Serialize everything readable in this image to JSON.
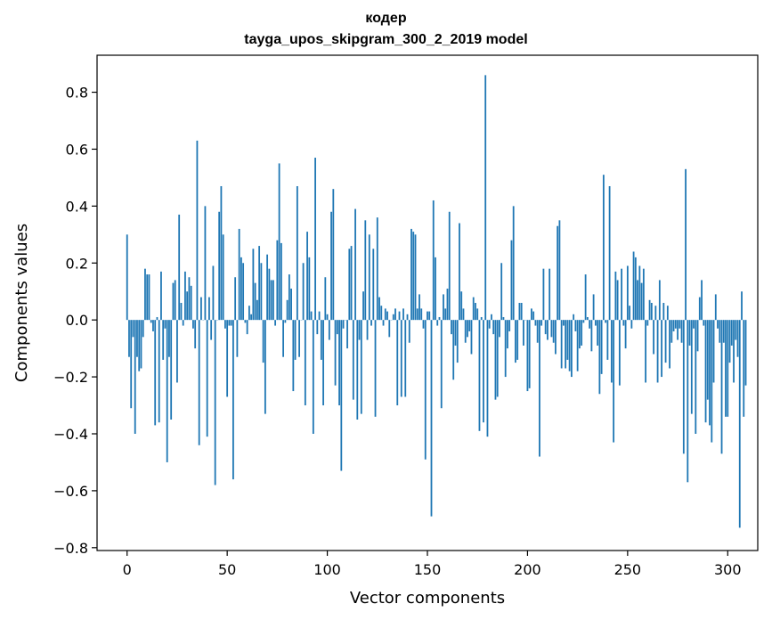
{
  "chart_data": {
    "type": "bar",
    "title_line1": "кодер",
    "title_line2": "tayga_upos_skipgram_300_2_2019 model",
    "xlabel": "Vector components",
    "ylabel": "Components values",
    "xlim": [
      -15,
      315
    ],
    "ylim": [
      -0.81,
      0.93
    ],
    "x_ticks": [
      0,
      50,
      100,
      150,
      200,
      250,
      300
    ],
    "x_tick_labels": [
      "0",
      "50",
      "100",
      "150",
      "200",
      "250",
      "300"
    ],
    "y_ticks": [
      -0.8,
      -0.6,
      -0.4,
      -0.2,
      0.0,
      0.2,
      0.4,
      0.6,
      0.8
    ],
    "y_tick_labels": [
      "−0.8",
      "−0.6",
      "−0.4",
      "−0.2",
      "0.0",
      "0.2",
      "0.4",
      "0.6",
      "0.8"
    ],
    "bar_color": "#1f77b4",
    "values": [
      0.3,
      -0.13,
      -0.31,
      -0.06,
      -0.4,
      -0.13,
      -0.18,
      -0.17,
      -0.06,
      0.18,
      0.16,
      0.16,
      -0.01,
      -0.04,
      -0.37,
      0.01,
      -0.36,
      0.17,
      -0.14,
      -0.03,
      -0.5,
      -0.13,
      -0.35,
      0.13,
      0.14,
      -0.22,
      0.37,
      0.06,
      -0.02,
      0.17,
      0.1,
      0.15,
      0.12,
      -0.03,
      -0.1,
      0.63,
      -0.44,
      0.08,
      0.0,
      0.4,
      -0.41,
      0.08,
      -0.07,
      0.19,
      -0.58,
      0.0,
      0.38,
      0.47,
      0.3,
      -0.03,
      -0.27,
      -0.02,
      -0.02,
      -0.56,
      0.15,
      -0.13,
      0.32,
      0.22,
      0.2,
      -0.01,
      -0.05,
      0.05,
      0.02,
      0.25,
      0.13,
      0.07,
      0.26,
      0.2,
      -0.15,
      -0.33,
      0.23,
      0.18,
      0.14,
      0.14,
      -0.02,
      0.28,
      0.55,
      0.27,
      -0.13,
      -0.01,
      0.07,
      0.16,
      0.11,
      -0.25,
      -0.14,
      0.47,
      -0.13,
      0.0,
      0.2,
      -0.3,
      0.31,
      0.22,
      0.03,
      -0.4,
      0.57,
      -0.05,
      0.03,
      -0.14,
      -0.3,
      0.15,
      0.02,
      -0.07,
      0.38,
      0.46,
      -0.23,
      -0.05,
      -0.3,
      -0.53,
      -0.03,
      0.0,
      -0.1,
      0.25,
      0.26,
      -0.28,
      0.39,
      -0.35,
      -0.07,
      -0.33,
      0.1,
      0.35,
      -0.07,
      0.3,
      -0.02,
      0.25,
      -0.34,
      0.36,
      0.08,
      0.05,
      -0.02,
      0.04,
      0.03,
      -0.06,
      0.0,
      0.02,
      0.04,
      -0.3,
      0.03,
      -0.27,
      0.04,
      -0.27,
      0.02,
      -0.08,
      0.32,
      0.31,
      0.3,
      0.04,
      0.09,
      0.04,
      -0.03,
      -0.49,
      0.03,
      0.03,
      -0.69,
      0.42,
      0.22,
      -0.02,
      0.01,
      -0.31,
      0.09,
      0.04,
      0.11,
      0.38,
      -0.05,
      -0.21,
      -0.09,
      -0.15,
      0.34,
      0.1,
      0.04,
      -0.08,
      -0.06,
      -0.04,
      -0.12,
      0.08,
      0.06,
      0.04,
      -0.39,
      0.01,
      -0.36,
      0.86,
      -0.41,
      -0.03,
      0.02,
      -0.05,
      -0.28,
      -0.27,
      -0.06,
      0.2,
      0.01,
      -0.2,
      -0.1,
      -0.04,
      0.28,
      0.4,
      -0.15,
      -0.14,
      0.06,
      0.06,
      -0.09,
      0.0,
      -0.25,
      -0.24,
      0.04,
      0.03,
      -0.02,
      -0.08,
      -0.48,
      -0.02,
      0.18,
      -0.05,
      -0.07,
      0.18,
      -0.06,
      -0.08,
      -0.12,
      0.33,
      0.35,
      -0.17,
      -0.02,
      -0.17,
      -0.14,
      -0.18,
      -0.2,
      0.02,
      -0.04,
      -0.18,
      -0.1,
      -0.09,
      -0.01,
      0.16,
      0.01,
      -0.03,
      -0.11,
      0.09,
      -0.02,
      -0.09,
      -0.26,
      -0.19,
      0.51,
      -0.01,
      -0.14,
      0.47,
      -0.22,
      -0.43,
      0.17,
      0.14,
      -0.23,
      0.18,
      -0.02,
      -0.1,
      0.19,
      0.05,
      -0.03,
      0.24,
      0.22,
      0.14,
      0.19,
      0.13,
      0.18,
      -0.22,
      -0.02,
      0.07,
      0.06,
      -0.12,
      0.05,
      -0.22,
      0.14,
      -0.2,
      0.06,
      -0.15,
      0.05,
      -0.17,
      -0.08,
      -0.04,
      -0.03,
      -0.07,
      -0.03,
      -0.08,
      -0.47,
      0.53,
      -0.57,
      -0.09,
      -0.33,
      -0.03,
      -0.4,
      -0.11,
      0.08,
      0.14,
      -0.02,
      -0.36,
      -0.28,
      -0.37,
      -0.43,
      -0.22,
      0.09,
      -0.03,
      -0.08,
      -0.47,
      -0.08,
      -0.34,
      -0.34,
      -0.15,
      -0.09,
      -0.22,
      -0.07,
      -0.13,
      -0.73,
      0.1,
      -0.34,
      -0.23
    ]
  }
}
